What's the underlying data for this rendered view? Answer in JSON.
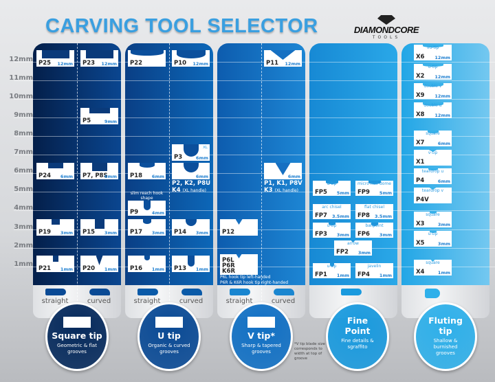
{
  "header": {
    "title": "CARVING TOOL SELECTOR",
    "logo": {
      "name": "DIAMONDCORE",
      "sub": "TOOLS"
    }
  },
  "scale": [
    "12mm",
    "11mm",
    "10mm",
    "9mm",
    "8mm",
    "7mm",
    "6mm",
    "5mm",
    "4mm",
    "3mm",
    "2mm",
    "1mm"
  ],
  "cards": [
    {
      "code": "P25",
      "size": "12mm"
    },
    {
      "code": "P24",
      "size": "6mm"
    },
    {
      "code": "P19",
      "size": "3mm"
    },
    {
      "code": "P21",
      "size": "1mm"
    },
    {
      "code": "P23",
      "size": "12mm"
    },
    {
      "code": "P5",
      "size": "9mm"
    },
    {
      "code": "P7, P8S",
      "size": "6mm"
    },
    {
      "code": "P15",
      "size": "3mm"
    },
    {
      "code": "P20",
      "size": "1mm"
    },
    {
      "code": "P22",
      "size": ""
    },
    {
      "code": "P18",
      "size": "6mm"
    },
    {
      "code": "P9",
      "size": "4mm"
    },
    {
      "code": "P17",
      "size": "3mm"
    },
    {
      "code": "P16",
      "size": "1mm"
    },
    {
      "code": "P10",
      "size": "12mm"
    },
    {
      "code": "P3",
      "size": "6mm",
      "xl": "XL"
    },
    {
      "code": "",
      "size": "6mm"
    },
    {
      "code": "P14",
      "size": "3mm"
    },
    {
      "code": "P13",
      "size": "1mm"
    },
    {
      "code": "P12",
      "size": ""
    },
    {
      "code": "P6L\nP6R\nK6R",
      "size": ""
    },
    {
      "code": "P11",
      "size": "12mm"
    },
    {
      "code": "",
      "size": "6mm"
    },
    {
      "code": "FP5",
      "size": "5mm",
      "desc": "u-tip"
    },
    {
      "code": "FP9",
      "size": "5mm",
      "desc": "micro half dome"
    },
    {
      "code": "FP7",
      "size": "3.5mm",
      "desc": "arc chisel"
    },
    {
      "code": "FP8",
      "size": "3.5mm",
      "desc": "flat chisel"
    },
    {
      "code": "FP3",
      "size": "3mm",
      "desc": "u-tip"
    },
    {
      "code": "FP6",
      "size": "3mm",
      "desc": "ballpoint"
    },
    {
      "code": "FP2",
      "size": "3mm",
      "desc": "arrow"
    },
    {
      "code": "FP1",
      "size": "1mm",
      "desc": "u-tip"
    },
    {
      "code": "FP4",
      "size": "1mm",
      "desc": "javelin"
    },
    {
      "code": "X6",
      "size": "12mm",
      "desc": "vu-tip"
    },
    {
      "code": "X2",
      "size": "12mm",
      "desc": "u-tip"
    },
    {
      "code": "X9",
      "size": "12mm",
      "desc": "double v"
    },
    {
      "code": "X8",
      "size": "12mm",
      "desc": "double u"
    },
    {
      "code": "X7",
      "size": "6mm",
      "desc": "square"
    },
    {
      "code": "X1",
      "size": "",
      "desc": "v-tip"
    },
    {
      "code": "P4",
      "size": "6mm",
      "desc": "teardrop u"
    },
    {
      "code": "P4V",
      "size": "",
      "desc": "teardrop v"
    },
    {
      "code": "X3",
      "size": "3mm",
      "desc": "square"
    },
    {
      "code": "X5",
      "size": "3mm",
      "desc": "u-tip"
    },
    {
      "code": "X4",
      "size": "1mm",
      "desc": "square"
    }
  ],
  "labels": {
    "p9_note": "slim reach hook shape",
    "u_6mm_codes": "P2, K2, P8U",
    "u_6mm_xl_code": "K4",
    "u_6mm_xl_note": "(XL handle)",
    "v_6mm_codes": "P1, K1, P8V",
    "v_6mm_xl_code": "K3",
    "v_6mm_xl_note": "(XL handle)",
    "p6_note_1": "P6L hook tip left-handed",
    "p6_note_2": "P6R & K6R hook tip right-handed"
  },
  "handles": {
    "straight": "straight",
    "curved": "curved"
  },
  "categories": [
    {
      "name": "Square tip",
      "desc": "Geometric & flat grooves",
      "color": "#062a5c"
    },
    {
      "name": "U tip",
      "desc": "Organic & curved grooves",
      "color": "#0a4a95"
    },
    {
      "name": "V tip*",
      "desc": "Sharp & tapered grooves",
      "color": "#1170c4"
    },
    {
      "name": "Fine Point",
      "desc": "Fine details & sgraffito",
      "color": "#1a9ade"
    },
    {
      "name": "Fluting tip",
      "desc": "Shallow & burnished grooves",
      "color": "#2fb0ea"
    }
  ],
  "footnote": "*V tip blade size corresponds to width at top of groove"
}
